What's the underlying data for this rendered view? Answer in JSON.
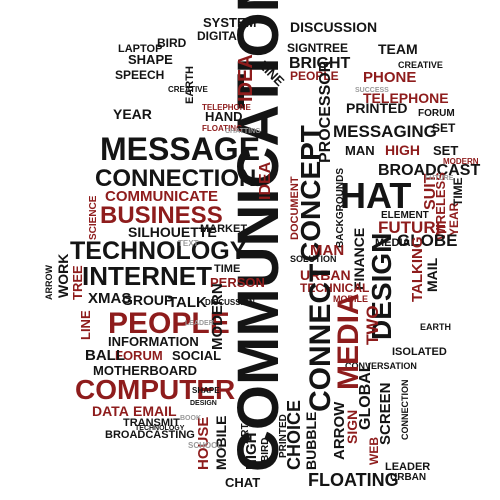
{
  "colors": {
    "background": "#ffffff",
    "ink": "#141414",
    "accent": "#8e1c1c",
    "faint": "#9a9a9a"
  },
  "words": {
    "communication": "COMMUNICATION",
    "message": "MESSAGE",
    "connection": "CONNECTION",
    "communicate": "COMMUNICATE",
    "business": "BUSINESS",
    "silhouette": "SILHOUETTE",
    "technology": "TECHNOLOGY",
    "internet": "INTERNET",
    "people": "PEOPLE",
    "computer": "COMPUTER",
    "media": "MEDIA",
    "design": "DESIGN",
    "connect": "CONNECT",
    "concept": "CONCEPT",
    "chat": "CHAT",
    "idea": "IDEA",
    "system": "SYSTEM",
    "discussion": "DISCUSSION",
    "digital": "DIGITAL",
    "team": "TEAM",
    "line": "LINE",
    "phone": "PHONE",
    "telephone": "TELEPHONE",
    "printed": "PRINTED",
    "messaging": "MESSAGING",
    "broadcast": "BROADCAST",
    "globe": "GLOBE",
    "future": "FUTURE",
    "finance": "FINANCE",
    "talking": "TALKING",
    "suit": "SUIT",
    "element": "ELEMENT",
    "wireless": "WIRELESS",
    "processor": "PROCESSOR",
    "technical": "TECHNICAL",
    "urban": "URBAN",
    "man": "MAN",
    "person": "PERSON",
    "group": "GROUP",
    "talk": "TALK",
    "xmas": "XMAS",
    "work": "WORK",
    "tree": "TREE",
    "ball": "BALL",
    "forum": "FORUM",
    "information": "INFORMATION",
    "motherboard": "MOTHERBOARD",
    "social": "SOCIAL",
    "data": "DATA",
    "email": "EMAIL",
    "transmit": "TRANSMIT",
    "house": "HOUSE",
    "mobile": "MOBILE",
    "floating": "FLOATING",
    "arrow": "ARROW",
    "choice": "CHOICE",
    "bubble": "BUBBLE",
    "screen": "SCREEN",
    "sign": "SIGN",
    "two": "TWO",
    "global": "GLOBAL",
    "web": "WEB",
    "high": "HIGH",
    "bird": "BIRD",
    "hat": "HAT",
    "mail": "MAIL",
    "laptop": "LAPTOP",
    "shape": "SHAPE",
    "year": "YEAR",
    "speech": "SPEECH",
    "earth": "EARTH",
    "hand": "HAND",
    "bright": "BRIGHT",
    "market": "MARKET",
    "set": "SET",
    "time": "TIME",
    "modern": "MODERN",
    "isolated": "ISOLATED",
    "conversation": "CONVERSATION",
    "document": "DOCUMENT",
    "leader": "LEADER",
    "creative": "CREATIVE",
    "text": "TEXT",
    "backgrounds": "BACKGROUNDS",
    "solution": "SOLUTION",
    "science": "SCIENCE",
    "success": "SUCCESS",
    "chatting": "CHATTING",
    "printed_small": "PRINTED",
    "broadcasting": "BROADCASTING",
    "school": "SCHOOL",
    "future_small": "FUTURE",
    "art": "ART",
    "book": "BOOK",
    "connection_small": "CONNECTION"
  }
}
